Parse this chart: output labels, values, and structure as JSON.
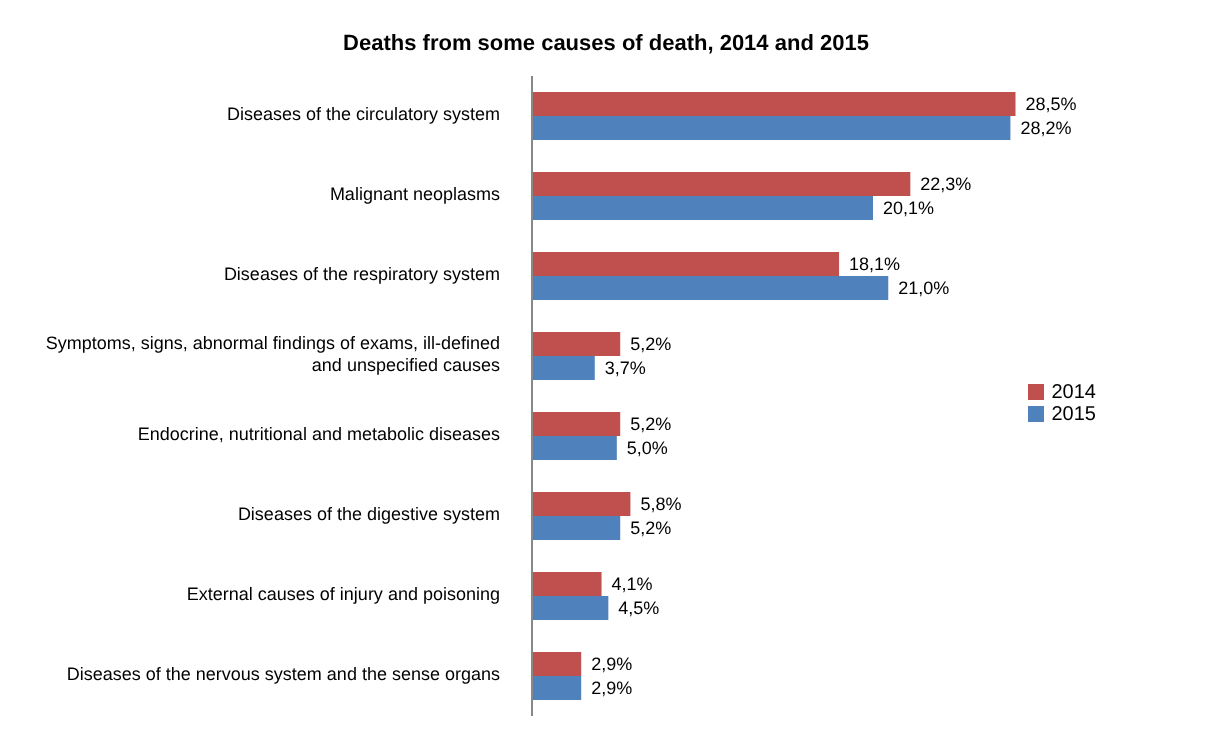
{
  "chart_data": {
    "type": "bar",
    "orientation": "horizontal",
    "title": "Deaths from some causes of death, 2014 and 2015",
    "categories": [
      "Diseases of the circulatory system",
      "Malignant neoplasms",
      "Diseases of the respiratory system",
      "Symptoms, signs, abnormal findings of exams, ill-defined and unspecified causes",
      "Endocrine, nutritional and metabolic diseases",
      "Diseases of the digestive system",
      "External causes of injury and poisoning",
      "Diseases of the nervous system and the sense organs"
    ],
    "series": [
      {
        "name": "2014",
        "color": "#c0504d",
        "values": [
          28.5,
          22.3,
          18.1,
          5.2,
          5.2,
          5.8,
          4.1,
          2.9
        ],
        "value_labels": [
          "28,5%",
          "22,3%",
          "18,1%",
          "5,2%",
          "5,2%",
          "5,8%",
          "4,1%",
          "2,9%"
        ]
      },
      {
        "name": "2015",
        "color": "#4f81bd",
        "values": [
          28.2,
          20.1,
          21.0,
          3.7,
          5.0,
          5.2,
          4.5,
          2.9
        ],
        "value_labels": [
          "28,2%",
          "20,1%",
          "21,0%",
          "3,7%",
          "5,0%",
          "5,2%",
          "4,5%",
          "2,9%"
        ]
      }
    ],
    "grid": false,
    "legend": "right"
  }
}
